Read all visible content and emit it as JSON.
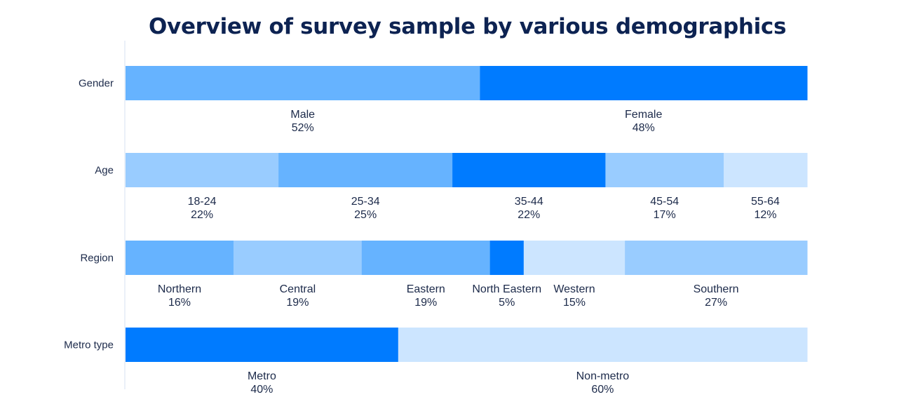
{
  "chart_data": {
    "type": "bar",
    "subtype": "stacked-100-percent-horizontal",
    "title": "Overview of survey sample by various demographics",
    "grid": false,
    "legend": "none",
    "rows": [
      {
        "label": "Gender",
        "segments": [
          {
            "name": "Male",
            "value": 52,
            "display": "52%",
            "color": "#66b3ff"
          },
          {
            "name": "Female",
            "value": 48,
            "display": "48%",
            "color": "#007bff"
          }
        ]
      },
      {
        "label": "Age",
        "segments": [
          {
            "name": "18-24",
            "value": 22,
            "display": "22%",
            "color": "#99ccff"
          },
          {
            "name": "25-34",
            "value": 25,
            "display": "25%",
            "color": "#66b3ff"
          },
          {
            "name": "35-44",
            "value": 22,
            "display": "22%",
            "color": "#007bff"
          },
          {
            "name": "45-54",
            "value": 17,
            "display": "17%",
            "color": "#99ccff"
          },
          {
            "name": "55-64",
            "value": 12,
            "display": "12%",
            "color": "#cce5ff"
          }
        ]
      },
      {
        "label": "Region",
        "segments": [
          {
            "name": "Northern",
            "value": 16,
            "display": "16%",
            "color": "#66b3ff"
          },
          {
            "name": "Central",
            "value": 19,
            "display": "19%",
            "color": "#99ccff"
          },
          {
            "name": "Eastern",
            "value": 19,
            "display": "19%",
            "color": "#66b3ff"
          },
          {
            "name": "North Eastern",
            "value": 5,
            "display": "5%",
            "color": "#007bff"
          },
          {
            "name": "Western",
            "value": 15,
            "display": "15%",
            "color": "#cce5ff"
          },
          {
            "name": "Southern",
            "value": 27,
            "display": "27%",
            "color": "#99ccff"
          }
        ]
      },
      {
        "label": "Metro type",
        "segments": [
          {
            "name": "Metro",
            "value": 40,
            "display": "40%",
            "color": "#007bff"
          },
          {
            "name": "Non-metro",
            "value": 60,
            "display": "60%",
            "color": "#cce5ff"
          }
        ]
      }
    ]
  },
  "colors": {
    "title": "#0d2352",
    "text": "#1c2a4a",
    "axis_line": "#d5e2f0"
  }
}
